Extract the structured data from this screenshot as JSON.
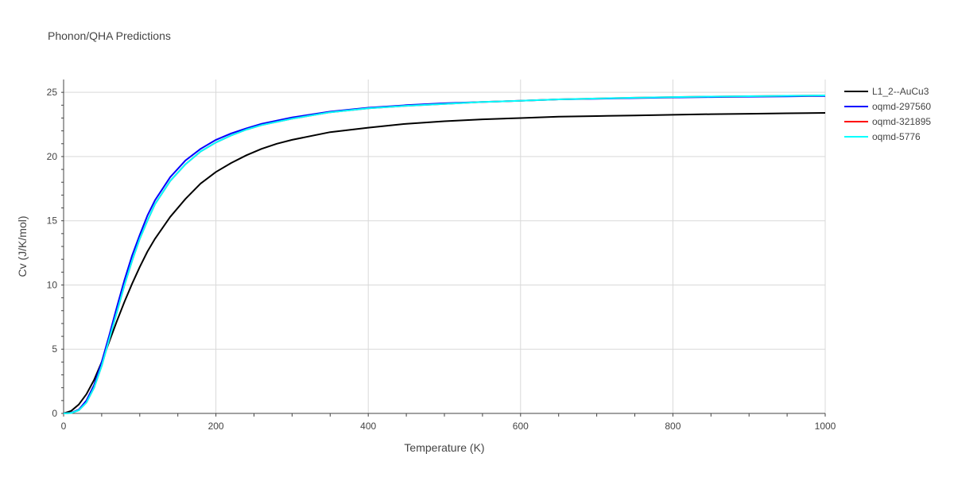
{
  "chart_data": {
    "type": "line",
    "title": "Phonon/QHA Predictions",
    "xlabel": "Temperature (K)",
    "ylabel": "Cv (J/K/mol)",
    "xlim": [
      0,
      1000
    ],
    "ylim": [
      0,
      26
    ],
    "xticks": [
      0,
      200,
      400,
      600,
      800,
      1000
    ],
    "yticks": [
      0,
      5,
      10,
      15,
      20,
      25
    ],
    "grid": true,
    "legend_position": "top-right",
    "series": [
      {
        "name": "L1_2--AuCu3",
        "color": "#000000",
        "x": [
          0,
          10,
          20,
          30,
          40,
          50,
          60,
          70,
          80,
          90,
          100,
          110,
          120,
          140,
          160,
          180,
          200,
          220,
          240,
          260,
          280,
          300,
          350,
          400,
          450,
          500,
          550,
          600,
          650,
          700,
          750,
          800,
          850,
          900,
          950,
          1000
        ],
        "y": [
          0,
          0.2,
          0.7,
          1.5,
          2.6,
          4.0,
          5.6,
          7.2,
          8.7,
          10.1,
          11.4,
          12.6,
          13.6,
          15.3,
          16.7,
          17.9,
          18.8,
          19.5,
          20.1,
          20.6,
          21.0,
          21.3,
          21.9,
          22.25,
          22.55,
          22.75,
          22.9,
          23.0,
          23.1,
          23.15,
          23.2,
          23.25,
          23.3,
          23.33,
          23.37,
          23.4
        ]
      },
      {
        "name": "oqmd-297560",
        "color": "#0000ff",
        "x": [
          0,
          10,
          20,
          30,
          40,
          50,
          60,
          70,
          80,
          90,
          100,
          110,
          120,
          140,
          160,
          180,
          200,
          220,
          240,
          260,
          280,
          300,
          350,
          400,
          450,
          500,
          550,
          600,
          650,
          700,
          750,
          800,
          850,
          900,
          950,
          1000
        ],
        "y": [
          0,
          0.05,
          0.3,
          1.0,
          2.2,
          4.0,
          6.1,
          8.3,
          10.4,
          12.3,
          13.9,
          15.4,
          16.6,
          18.4,
          19.7,
          20.6,
          21.3,
          21.8,
          22.2,
          22.55,
          22.8,
          23.05,
          23.5,
          23.8,
          24.0,
          24.15,
          24.25,
          24.35,
          24.45,
          24.5,
          24.55,
          24.6,
          24.63,
          24.66,
          24.69,
          24.72
        ]
      },
      {
        "name": "oqmd-321895",
        "color": "#ff0000",
        "x": [
          0,
          10,
          20,
          30,
          40,
          50,
          60,
          70,
          80,
          90,
          100,
          110,
          120,
          140,
          160,
          180,
          200,
          220,
          240,
          260,
          280,
          300,
          350,
          400,
          450,
          500,
          550,
          600,
          650,
          700,
          750,
          800,
          850,
          900,
          950,
          1000
        ],
        "y": [
          0,
          0.03,
          0.25,
          0.85,
          2.0,
          3.7,
          5.8,
          7.9,
          10.0,
          11.9,
          13.6,
          15.0,
          16.3,
          18.1,
          19.4,
          20.4,
          21.1,
          21.65,
          22.1,
          22.45,
          22.7,
          22.95,
          23.45,
          23.75,
          23.95,
          24.1,
          24.25,
          24.35,
          24.45,
          24.52,
          24.58,
          24.63,
          24.67,
          24.7,
          24.73,
          24.76
        ]
      },
      {
        "name": "oqmd-5776",
        "color": "#00ffff",
        "x": [
          0,
          10,
          20,
          30,
          40,
          50,
          60,
          70,
          80,
          90,
          100,
          110,
          120,
          140,
          160,
          180,
          200,
          220,
          240,
          260,
          280,
          300,
          350,
          400,
          450,
          500,
          550,
          600,
          650,
          700,
          750,
          800,
          850,
          900,
          950,
          1000
        ],
        "y": [
          0,
          0.03,
          0.25,
          0.85,
          2.0,
          3.7,
          5.8,
          7.9,
          10.0,
          11.9,
          13.6,
          15.0,
          16.3,
          18.1,
          19.4,
          20.4,
          21.1,
          21.65,
          22.1,
          22.45,
          22.7,
          22.95,
          23.45,
          23.75,
          23.95,
          24.1,
          24.25,
          24.35,
          24.45,
          24.52,
          24.58,
          24.63,
          24.67,
          24.7,
          24.73,
          24.76
        ]
      }
    ]
  }
}
